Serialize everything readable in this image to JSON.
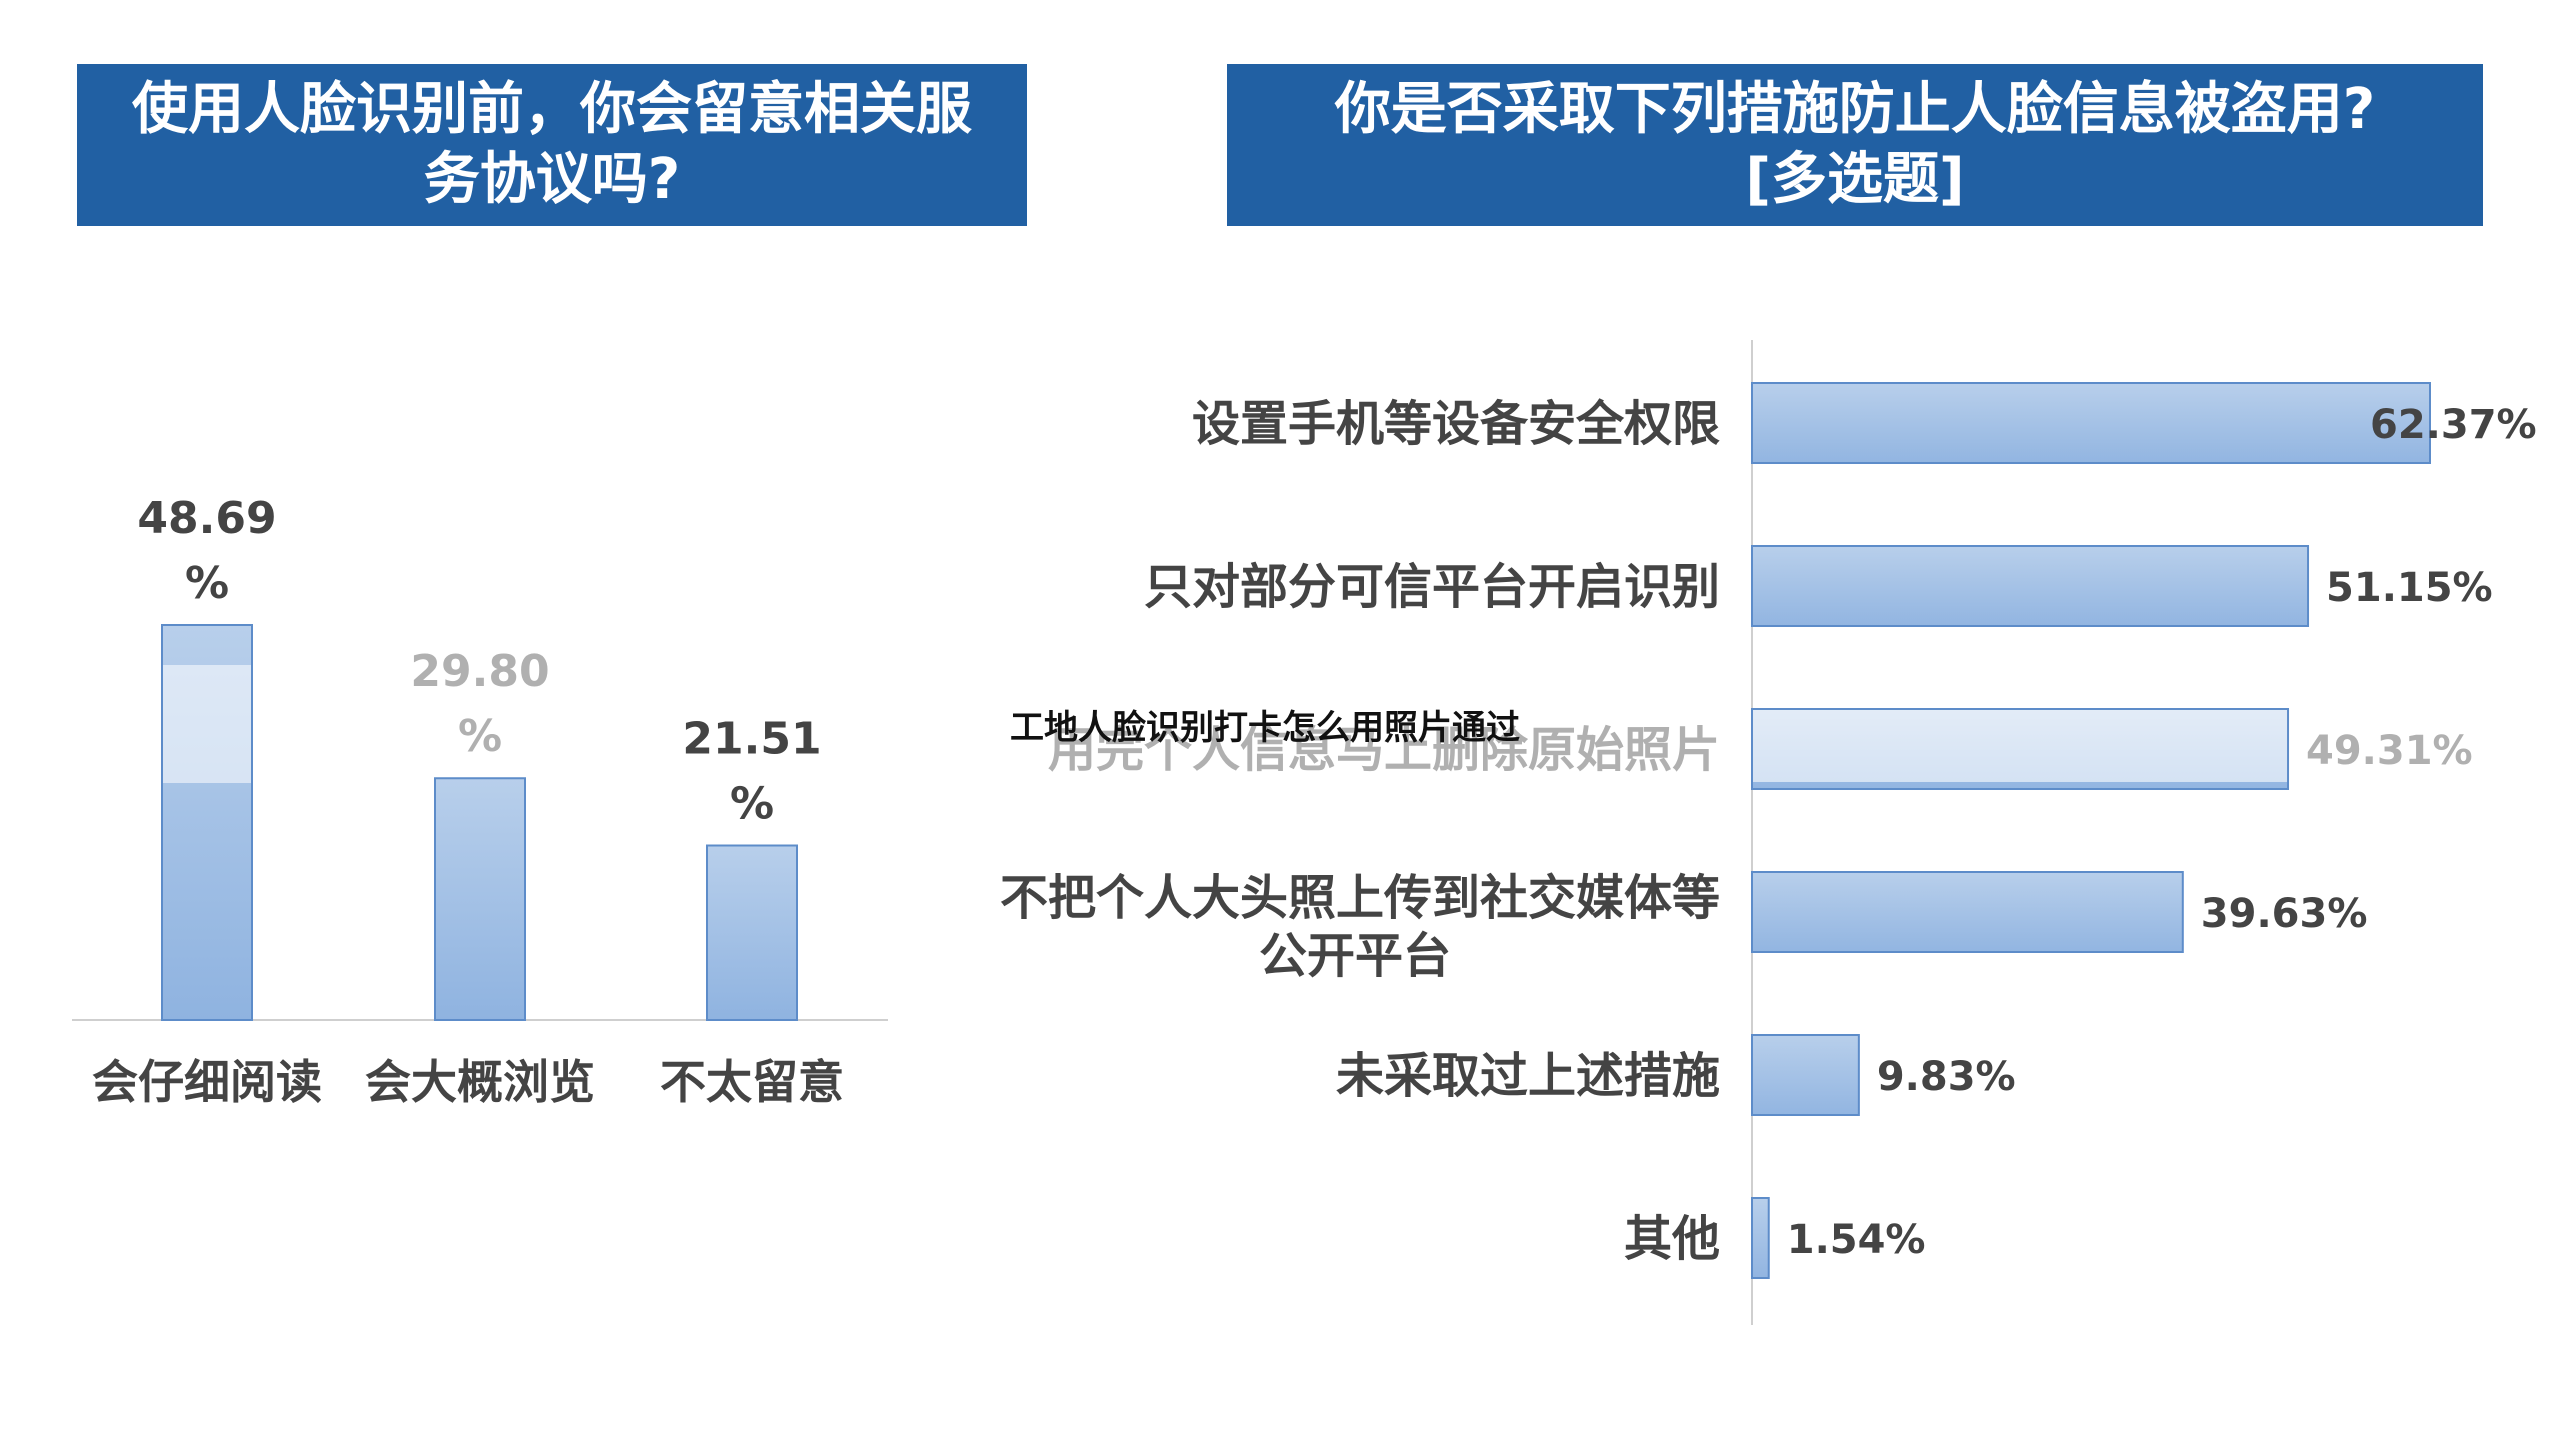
{
  "overlay_text": "工地人脸识别打卡怎么用照片通过",
  "colors": {
    "banner": "#2160a3",
    "bar_top": "#b4cbe9",
    "bar_bottom": "#93b6e2",
    "bar_stroke": "#5d8cc9",
    "label": "#444444",
    "faded": "#b0b0b0",
    "axis": "#cfcfcf"
  },
  "chart_data": [
    {
      "type": "bar",
      "title_lines": [
        "使用人脸识别前，你会留意相关服",
        "务协议吗?"
      ],
      "categories": [
        "会仔细阅读",
        "会大概浏览",
        "不太留意"
      ],
      "values": [
        48.69,
        29.8,
        21.51
      ],
      "data_labels": [
        [
          "48.69",
          "%"
        ],
        [
          "29.80",
          "%"
        ],
        [
          "21.51",
          "%"
        ]
      ],
      "unit": "%",
      "ylim": [
        0,
        50
      ]
    },
    {
      "type": "bar",
      "orientation": "horizontal",
      "title_lines": [
        "你是否采取下列措施防止人脸信息被盗用?",
        "[多选题]"
      ],
      "categories": [
        [
          "设置手机等设备安全权限"
        ],
        [
          "只对部分可信平台开启识别"
        ],
        [
          "用完个人信息马上删除原始照片"
        ],
        [
          "不把个人大头照上传到社交媒体等",
          "公开平台"
        ],
        [
          "未采取过上述措施"
        ],
        [
          "其他"
        ]
      ],
      "values": [
        62.37,
        51.15,
        49.31,
        39.63,
        9.83,
        1.54
      ],
      "data_labels": [
        "62.37%",
        "51.15%",
        "49.31%",
        "39.63%",
        "9.83%",
        "1.54%"
      ],
      "unit": "%",
      "xlim": [
        0,
        64
      ]
    }
  ]
}
